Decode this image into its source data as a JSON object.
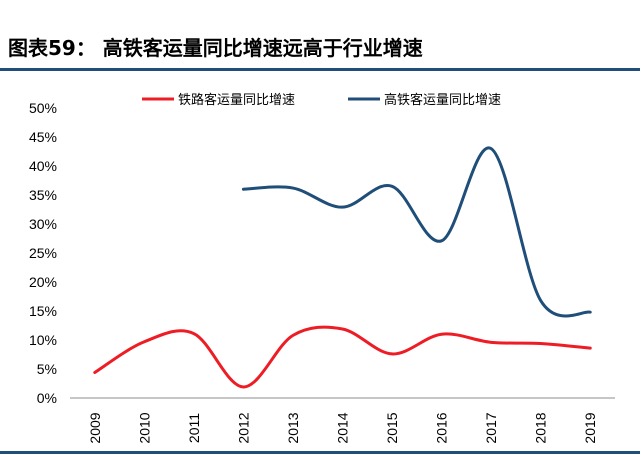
{
  "figure": {
    "title": "图表59：  高铁客运量同比增速远高于行业增速"
  },
  "chart_data": {
    "type": "line",
    "title": "",
    "xlabel": "",
    "ylabel": "",
    "x": [
      "2009",
      "2010",
      "2011",
      "2012",
      "2013",
      "2014",
      "2015",
      "2016",
      "2017",
      "2018",
      "2019"
    ],
    "ylim": [
      0,
      50
    ],
    "yticks": [
      "0%",
      "5%",
      "10%",
      "15%",
      "20%",
      "25%",
      "30%",
      "35%",
      "40%",
      "45%",
      "50%"
    ],
    "grid": false,
    "legend_position": "top-center",
    "series": [
      {
        "name": "铁路客运量同比增速",
        "color": "#ee1c24",
        "values": [
          4.4,
          9.7,
          11.1,
          1.9,
          10.8,
          11.9,
          7.6,
          11.0,
          9.6,
          9.4,
          8.6
        ]
      },
      {
        "name": "高铁客运量同比增速",
        "color": "#1f4e79",
        "values": [
          null,
          null,
          null,
          36.0,
          36.2,
          32.9,
          36.5,
          27.1,
          43.0,
          16.8,
          14.8
        ]
      }
    ]
  }
}
